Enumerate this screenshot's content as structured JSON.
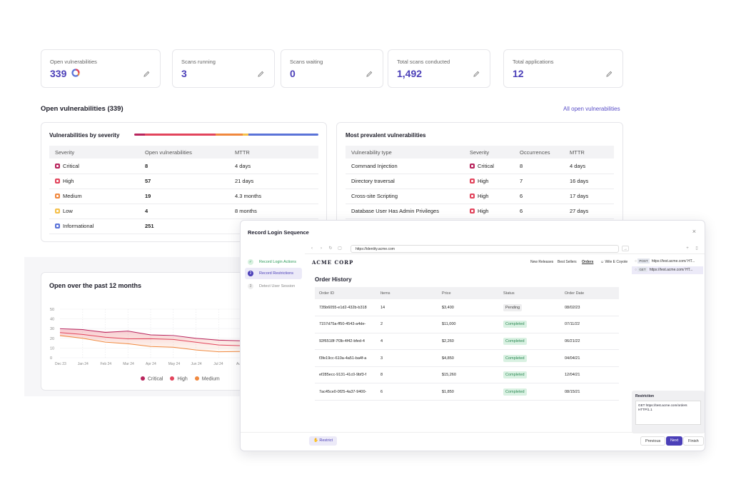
{
  "stats": [
    {
      "label": "Open vulnerabilities",
      "value": "339"
    },
    {
      "label": "Scans running",
      "value": "3"
    },
    {
      "label": "Scans waiting",
      "value": "0"
    },
    {
      "label": "Total scans conducted",
      "value": "1,492"
    },
    {
      "label": "Total applications",
      "value": "12"
    }
  ],
  "open_vulns": {
    "title": "Open vulnerabilities (339)",
    "all_link": "All open vulnerabilities"
  },
  "severity_panel": {
    "title": "Vulnerabilities by severity",
    "columns": [
      "Severity",
      "Open vulnerabilities",
      "MTTR"
    ],
    "rows": [
      {
        "severity": "Critical",
        "count": "8",
        "mttr": "4 days",
        "color": "#b8245c"
      },
      {
        "severity": "High",
        "count": "57",
        "mttr": "21 days",
        "color": "#e2445c"
      },
      {
        "severity": "Medium",
        "count": "19",
        "mttr": "4.3 months",
        "color": "#f0883e"
      },
      {
        "severity": "Low",
        "count": "4",
        "mttr": "8 months",
        "color": "#f5c04a"
      },
      {
        "severity": "Informational",
        "count": "251",
        "mttr": "",
        "color": "#5a73d8"
      }
    ]
  },
  "prevalent_panel": {
    "title": "Most prevalent vulnerabilities",
    "columns": [
      "Vulnerability type",
      "Severity",
      "Occurrences",
      "MTTR"
    ],
    "rows": [
      {
        "type": "Command Injection",
        "severity": "Critical",
        "occ": "8",
        "mttr": "4 days",
        "color": "#b8245c"
      },
      {
        "type": "Directory traversal",
        "severity": "High",
        "occ": "7",
        "mttr": "16 days",
        "color": "#e2445c"
      },
      {
        "type": "Cross-site Scripting",
        "severity": "High",
        "occ": "6",
        "mttr": "17 days",
        "color": "#e2445c"
      },
      {
        "type": "Database User Has Admin Privileges",
        "severity": "High",
        "occ": "6",
        "mttr": "27 days",
        "color": "#e2445c"
      }
    ]
  },
  "trend": {
    "title": "Open over the past 12 months",
    "legend": [
      "Critical",
      "High",
      "Medium"
    ]
  },
  "chart_data": {
    "type": "area",
    "title": "Open over the past 12 months",
    "x": [
      "Dec 23",
      "Jan 24",
      "Feb 24",
      "Mar 24",
      "Apr 24",
      "May 24",
      "Jun 24",
      "Jul 24",
      "Aug"
    ],
    "ylim": [
      0,
      50
    ],
    "yticks": [
      "0",
      "10",
      "20",
      "30",
      "40",
      "50"
    ],
    "series": [
      {
        "name": "Critical",
        "color": "#b8245c",
        "values": [
          29,
          29,
          27,
          27,
          24,
          22,
          20,
          19,
          17
        ]
      },
      {
        "name": "High",
        "color": "#e2445c",
        "values": [
          25,
          24,
          22,
          19,
          20,
          18,
          16,
          14,
          12
        ]
      },
      {
        "name": "Medium",
        "color": "#f0883e",
        "values": [
          22,
          20,
          17,
          14,
          12,
          10,
          8,
          7,
          6
        ]
      }
    ]
  },
  "modal": {
    "title": "Record Login Sequence",
    "close": "×",
    "steps": [
      "Record Login Actions",
      "Record Restrictions",
      "Detect User Session"
    ],
    "url": "https://identity.acme.com",
    "site_logo": "ACME CORP",
    "site_nav": [
      "New Releases",
      "Best Sellers",
      "Orders",
      "Wile E Coyote"
    ],
    "orders_title": "Order History",
    "orders_columns": [
      "Order ID",
      "Items",
      "Price",
      "Status",
      "Order Date"
    ],
    "orders": [
      {
        "id": "735b6055-e1d2-432b-b318",
        "items": "14",
        "price": "$3,400",
        "status": "Pending",
        "date": "08/02/23"
      },
      {
        "id": "7157d75a-ff50-4543-a4de-",
        "items": "2",
        "price": "$11,000",
        "status": "Completed",
        "date": "07/11/22"
      },
      {
        "id": "92f6518f-7f3b-4f42-bfed-4",
        "items": "4",
        "price": "$2,260",
        "status": "Completed",
        "date": "06/21/22"
      },
      {
        "id": "f3fe19cc-610a-4a51-ba4f-a",
        "items": "3",
        "price": "$4,850",
        "status": "Completed",
        "date": "04/04/21"
      },
      {
        "id": "ef285ecc-9131-41c0-9bf3-f",
        "items": "8",
        "price": "$15,260",
        "status": "Completed",
        "date": "12/04/21"
      },
      {
        "id": "7ac45ce0-0f25-4a37-9400-",
        "items": "6",
        "price": "$1,850",
        "status": "Completed",
        "date": "08/15/21"
      }
    ],
    "requests": [
      {
        "method": "POST",
        "url": "https://test.acme.com/ HT..."
      },
      {
        "method": "GET",
        "url": "https://test.acme.com/ HT..."
      }
    ],
    "restriction_title": "Restriction",
    "restriction_body": "GET https://test.acme.com/orders HTTP/1.1",
    "restrict_btn": "Restrict",
    "prev_btn": "Previous",
    "next_btn": "Next",
    "finish_btn": "Finish"
  }
}
